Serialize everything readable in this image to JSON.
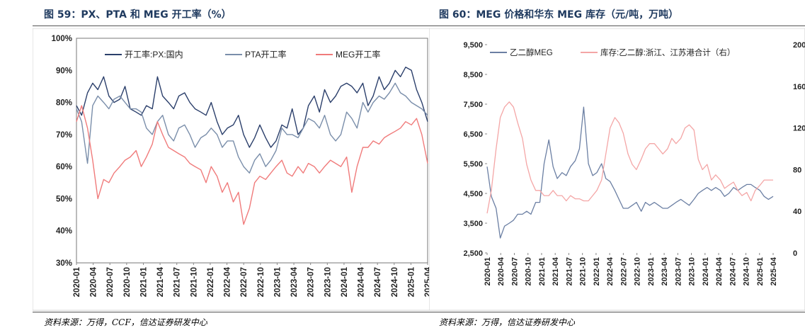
{
  "left": {
    "title": "图 59：PX、PTA 和 MEG 开工率（%）",
    "source": "资料来源：万得，CCF，信达证券研发中心"
  },
  "right": {
    "title": "图 60：MEG 价格和华东 MEG 库存（元/吨，万吨）",
    "source": "资料来源：万得，信达证券研发中心"
  },
  "chart_data": [
    {
      "type": "line",
      "title": "PX、PTA 和 MEG 开工率（%）",
      "ylabel": "%",
      "ylim": [
        30,
        100
      ],
      "yticks": [
        "30%",
        "40%",
        "50%",
        "60%",
        "70%",
        "80%",
        "90%",
        "100%"
      ],
      "xlim": [
        2020.0,
        2025.42
      ],
      "xticks": [
        "2020-01",
        "2020-04",
        "2020-07",
        "2020-10",
        "2021-01",
        "2021-04",
        "2021-07",
        "2021-10",
        "2022-01",
        "2022-04",
        "2022-07",
        "2022-10",
        "2023-01",
        "2023-04",
        "2023-07",
        "2023-10",
        "2024-01",
        "2024-04",
        "2024-07",
        "2024-10",
        "2025-01",
        "2025-04"
      ],
      "legend_position": "top",
      "series": [
        {
          "name": "开工率:PX:国内",
          "color": "#2b3f6b",
          "x": [
            2020.0,
            2020.08,
            2020.17,
            2020.25,
            2020.33,
            2020.42,
            2020.5,
            2020.58,
            2020.67,
            2020.75,
            2020.83,
            2020.92,
            2021.0,
            2021.08,
            2021.17,
            2021.25,
            2021.33,
            2021.42,
            2021.5,
            2021.58,
            2021.67,
            2021.75,
            2021.83,
            2021.92,
            2022.0,
            2022.08,
            2022.17,
            2022.25,
            2022.33,
            2022.42,
            2022.5,
            2022.58,
            2022.67,
            2022.75,
            2022.83,
            2022.92,
            2023.0,
            2023.08,
            2023.17,
            2023.25,
            2023.33,
            2023.42,
            2023.5,
            2023.58,
            2023.67,
            2023.75,
            2023.83,
            2023.92,
            2024.0,
            2024.08,
            2024.17,
            2024.25,
            2024.33,
            2024.42,
            2024.5,
            2024.58,
            2024.67,
            2024.75,
            2024.83,
            2024.92,
            2025.0,
            2025.08,
            2025.17,
            2025.25,
            2025.33,
            2025.42
          ],
          "y": [
            79,
            76,
            83,
            86,
            84,
            88,
            82,
            80,
            81,
            85,
            78,
            77,
            76,
            79,
            78,
            88,
            82,
            80,
            78,
            82,
            83,
            80,
            78,
            77,
            76,
            80,
            74,
            70,
            72,
            73,
            76,
            70,
            66,
            69,
            73,
            69,
            66,
            68,
            73,
            72,
            78,
            70,
            72,
            79,
            82,
            77,
            84,
            80,
            82,
            85,
            86,
            85,
            83,
            86,
            79,
            82,
            88,
            84,
            86,
            90,
            88,
            91,
            90,
            84,
            80,
            74
          ]
        },
        {
          "name": "PTA开工率",
          "color": "#7a8eaa",
          "x": [
            2020.0,
            2020.08,
            2020.17,
            2020.25,
            2020.33,
            2020.42,
            2020.5,
            2020.58,
            2020.67,
            2020.75,
            2020.83,
            2020.92,
            2021.0,
            2021.08,
            2021.17,
            2021.25,
            2021.33,
            2021.42,
            2021.5,
            2021.58,
            2021.67,
            2021.75,
            2021.83,
            2021.92,
            2022.0,
            2022.08,
            2022.17,
            2022.25,
            2022.33,
            2022.42,
            2022.5,
            2022.58,
            2022.67,
            2022.75,
            2022.83,
            2022.92,
            2023.0,
            2023.08,
            2023.17,
            2023.25,
            2023.33,
            2023.42,
            2023.5,
            2023.58,
            2023.67,
            2023.75,
            2023.83,
            2023.92,
            2024.0,
            2024.08,
            2024.17,
            2024.25,
            2024.33,
            2024.42,
            2024.5,
            2024.58,
            2024.67,
            2024.75,
            2024.83,
            2024.92,
            2025.0,
            2025.08,
            2025.17,
            2025.25,
            2025.33,
            2025.42
          ],
          "y": [
            78,
            74,
            61,
            79,
            82,
            80,
            78,
            81,
            82,
            80,
            78,
            78,
            77,
            72,
            70,
            74,
            76,
            70,
            68,
            72,
            73,
            70,
            66,
            69,
            70,
            72,
            70,
            66,
            68,
            68,
            63,
            60,
            58,
            62,
            64,
            60,
            62,
            65,
            72,
            70,
            70,
            69,
            72,
            75,
            74,
            72,
            76,
            70,
            68,
            70,
            77,
            75,
            72,
            80,
            77,
            80,
            82,
            81,
            83,
            86,
            83,
            82,
            80,
            79,
            78,
            76
          ]
        },
        {
          "name": "MEG开工率",
          "color": "#f07b7b",
          "x": [
            2020.0,
            2020.08,
            2020.17,
            2020.25,
            2020.33,
            2020.42,
            2020.5,
            2020.58,
            2020.67,
            2020.75,
            2020.83,
            2020.92,
            2021.0,
            2021.08,
            2021.17,
            2021.25,
            2021.33,
            2021.42,
            2021.5,
            2021.58,
            2021.67,
            2021.75,
            2021.83,
            2021.92,
            2022.0,
            2022.08,
            2022.17,
            2022.25,
            2022.33,
            2022.42,
            2022.5,
            2022.58,
            2022.67,
            2022.75,
            2022.83,
            2022.92,
            2023.0,
            2023.08,
            2023.17,
            2023.25,
            2023.33,
            2023.42,
            2023.5,
            2023.58,
            2023.67,
            2023.75,
            2023.83,
            2023.92,
            2024.0,
            2024.08,
            2024.17,
            2024.25,
            2024.33,
            2024.42,
            2024.5,
            2024.58,
            2024.67,
            2024.75,
            2024.83,
            2024.92,
            2025.0,
            2025.08,
            2025.17,
            2025.25,
            2025.33,
            2025.42
          ],
          "y": [
            74,
            79,
            72,
            62,
            50,
            56,
            55,
            58,
            60,
            62,
            63,
            65,
            60,
            63,
            67,
            74,
            70,
            66,
            65,
            64,
            63,
            61,
            60,
            59,
            55,
            60,
            57,
            52,
            55,
            49,
            52,
            42,
            47,
            55,
            57,
            56,
            58,
            60,
            62,
            58,
            57,
            60,
            58,
            61,
            60,
            58,
            60,
            62,
            61,
            60,
            63,
            52,
            60,
            66,
            66,
            68,
            67,
            69,
            70,
            71,
            72,
            74,
            73,
            75,
            70,
            61
          ]
        }
      ]
    },
    {
      "type": "line",
      "title": "MEG 价格和华东 MEG 库存（元/吨，万吨）",
      "ylim_left": [
        2500,
        9500
      ],
      "yticks_left": [
        "2,500",
        "3,500",
        "4,500",
        "5,500",
        "6,500",
        "7,500",
        "8,500",
        "9,500"
      ],
      "ylim_right": [
        0,
        200
      ],
      "yticks_right": [
        "0",
        "40",
        "80",
        "120",
        "160",
        "200"
      ],
      "xlim": [
        2020.0,
        2025.42
      ],
      "xticks": [
        "2020-01",
        "2020-04",
        "2020-07",
        "2020-10",
        "2021-01",
        "2021-04",
        "2021-07",
        "2021-10",
        "2022-01",
        "2022-04",
        "2022-07",
        "2022-10",
        "2023-01",
        "2023-04",
        "2023-07",
        "2023-10",
        "2024-01",
        "2024-04",
        "2024-07",
        "2024-10",
        "2025-01",
        "2025-04"
      ],
      "legend_position": "top",
      "series": [
        {
          "name": "乙二醇MEG",
          "axis": "left",
          "color": "#6b7fa3",
          "x": [
            2020.0,
            2020.08,
            2020.17,
            2020.25,
            2020.33,
            2020.42,
            2020.5,
            2020.58,
            2020.67,
            2020.75,
            2020.83,
            2020.92,
            2021.0,
            2021.08,
            2021.17,
            2021.25,
            2021.33,
            2021.42,
            2021.5,
            2021.58,
            2021.67,
            2021.75,
            2021.83,
            2021.92,
            2022.0,
            2022.08,
            2022.17,
            2022.25,
            2022.33,
            2022.42,
            2022.5,
            2022.58,
            2022.67,
            2022.75,
            2022.83,
            2022.92,
            2023.0,
            2023.08,
            2023.17,
            2023.25,
            2023.33,
            2023.42,
            2023.5,
            2023.58,
            2023.67,
            2023.75,
            2023.83,
            2023.92,
            2024.0,
            2024.08,
            2024.17,
            2024.25,
            2024.33,
            2024.42,
            2024.5,
            2024.58,
            2024.67,
            2024.75,
            2024.83,
            2024.92,
            2025.0,
            2025.08,
            2025.17,
            2025.25,
            2025.33,
            2025.42
          ],
          "y": [
            5400,
            4400,
            4000,
            3000,
            3400,
            3500,
            3600,
            3800,
            3800,
            3900,
            3800,
            4200,
            4200,
            5500,
            6300,
            5400,
            5000,
            5200,
            5100,
            5400,
            5600,
            6000,
            7400,
            5500,
            5100,
            5200,
            5500,
            5000,
            4900,
            4600,
            4300,
            4000,
            4000,
            4100,
            4200,
            3900,
            4200,
            4100,
            4200,
            4100,
            4000,
            4000,
            4100,
            4200,
            4300,
            4200,
            4100,
            4300,
            4500,
            4600,
            4700,
            4600,
            4700,
            4600,
            4400,
            4500,
            4700,
            4600,
            4700,
            4800,
            4800,
            4700,
            4600,
            4400,
            4300,
            4400
          ]
        },
        {
          "name": "库存:乙二醇:浙江、江苏港合计（右）",
          "axis": "right",
          "color": "#f4a6a6",
          "x": [
            2020.0,
            2020.08,
            2020.17,
            2020.25,
            2020.33,
            2020.42,
            2020.5,
            2020.58,
            2020.67,
            2020.75,
            2020.83,
            2020.92,
            2021.0,
            2021.08,
            2021.17,
            2021.25,
            2021.33,
            2021.42,
            2021.5,
            2021.58,
            2021.67,
            2021.75,
            2021.83,
            2021.92,
            2022.0,
            2022.08,
            2022.17,
            2022.25,
            2022.33,
            2022.42,
            2022.5,
            2022.58,
            2022.67,
            2022.75,
            2022.83,
            2022.92,
            2023.0,
            2023.08,
            2023.17,
            2023.25,
            2023.33,
            2023.42,
            2023.5,
            2023.58,
            2023.67,
            2023.75,
            2023.83,
            2023.92,
            2024.0,
            2024.08,
            2024.17,
            2024.25,
            2024.33,
            2024.42,
            2024.5,
            2024.58,
            2024.67,
            2024.75,
            2024.83,
            2024.92,
            2025.0,
            2025.08,
            2025.17,
            2025.25,
            2025.33,
            2025.42
          ],
          "y": [
            38,
            60,
            100,
            130,
            140,
            145,
            140,
            125,
            110,
            85,
            70,
            60,
            60,
            55,
            55,
            60,
            55,
            55,
            50,
            55,
            52,
            52,
            50,
            50,
            55,
            60,
            70,
            95,
            120,
            130,
            125,
            115,
            95,
            85,
            80,
            90,
            100,
            105,
            105,
            100,
            95,
            100,
            110,
            105,
            110,
            120,
            123,
            118,
            90,
            80,
            85,
            70,
            75,
            70,
            62,
            65,
            68,
            60,
            55,
            58,
            50,
            60,
            65,
            70,
            70,
            70
          ]
        }
      ]
    }
  ]
}
